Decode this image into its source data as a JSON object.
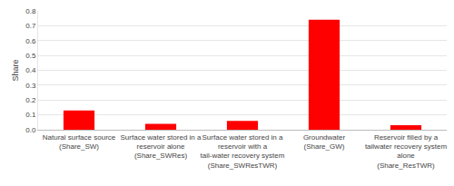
{
  "chart_data": {
    "type": "bar",
    "categories": [
      "Natural surface source (Share_SW)",
      "Surface water stored in a reservoir alone (Share_SWRes)",
      "Surface water stored in a reservoir with a tail-water recovery system (Share_SWResTWR)",
      "Groundwater (Share_GW)",
      "Reservoir filled by a tailwater recovery system alone (Share_ResTWR)"
    ],
    "values": [
      0.13,
      0.04,
      0.06,
      0.74,
      0.03
    ],
    "color": "#ff0000",
    "y_label": "Share",
    "ylim": [
      0,
      0.8
    ],
    "yticks": [
      {
        "value": 0,
        "label": "0.0"
      },
      0.1,
      0.2,
      0.3,
      0.4,
      0.5,
      0.6,
      0.7,
      0.8
    ],
    "grid": true
  }
}
